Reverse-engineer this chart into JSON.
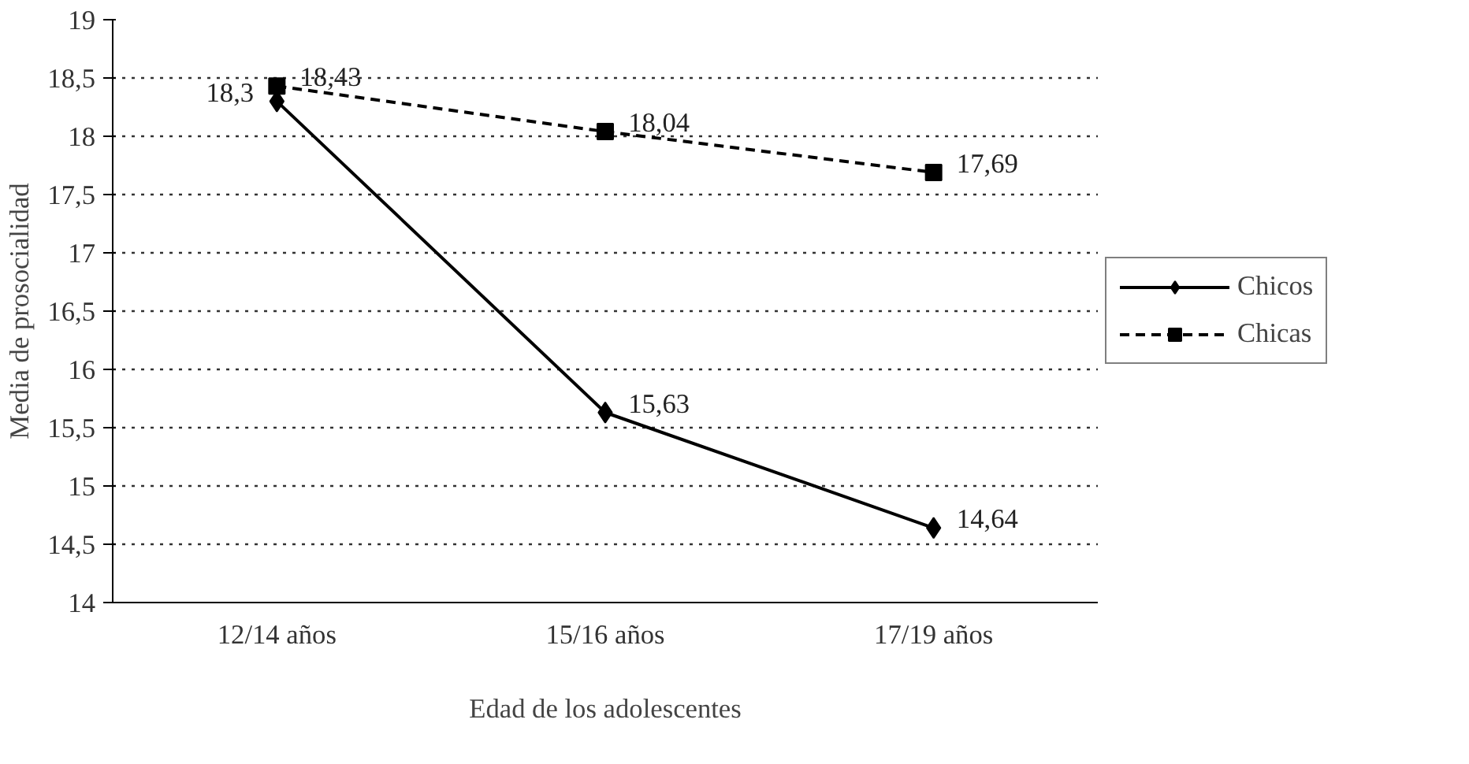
{
  "chart_data": {
    "type": "line",
    "xlabel": "Edad de los adolescentes",
    "ylabel": "Media de prosocialidad",
    "categories": [
      "12/14 años",
      "15/16 años",
      "17/19 años"
    ],
    "series": [
      {
        "name": "Chicos",
        "color": "#000000",
        "values": [
          18.3,
          15.63,
          14.64
        ],
        "marker": "diamond",
        "line_style": "solid",
        "value_labels": [
          "18,3",
          "15,63",
          "14,64"
        ]
      },
      {
        "name": "Chicas",
        "color": "#000000",
        "values": [
          18.43,
          18.04,
          17.69
        ],
        "marker": "square",
        "line_style": "dashed",
        "value_labels": [
          "18,43",
          "18,04",
          "17,69"
        ]
      }
    ],
    "ylim": [
      14,
      19
    ],
    "yticks": [
      14,
      {
        "value": 14.5,
        "label": "14,5"
      },
      15,
      {
        "value": 15.5,
        "label": "15,5"
      },
      16,
      {
        "value": 16.5,
        "label": "16,5"
      },
      17,
      {
        "value": 17.5,
        "label": "17,5"
      },
      18,
      {
        "value": 18.5,
        "label": "18,5"
      },
      19
    ],
    "grid": "y",
    "legend": "right"
  }
}
